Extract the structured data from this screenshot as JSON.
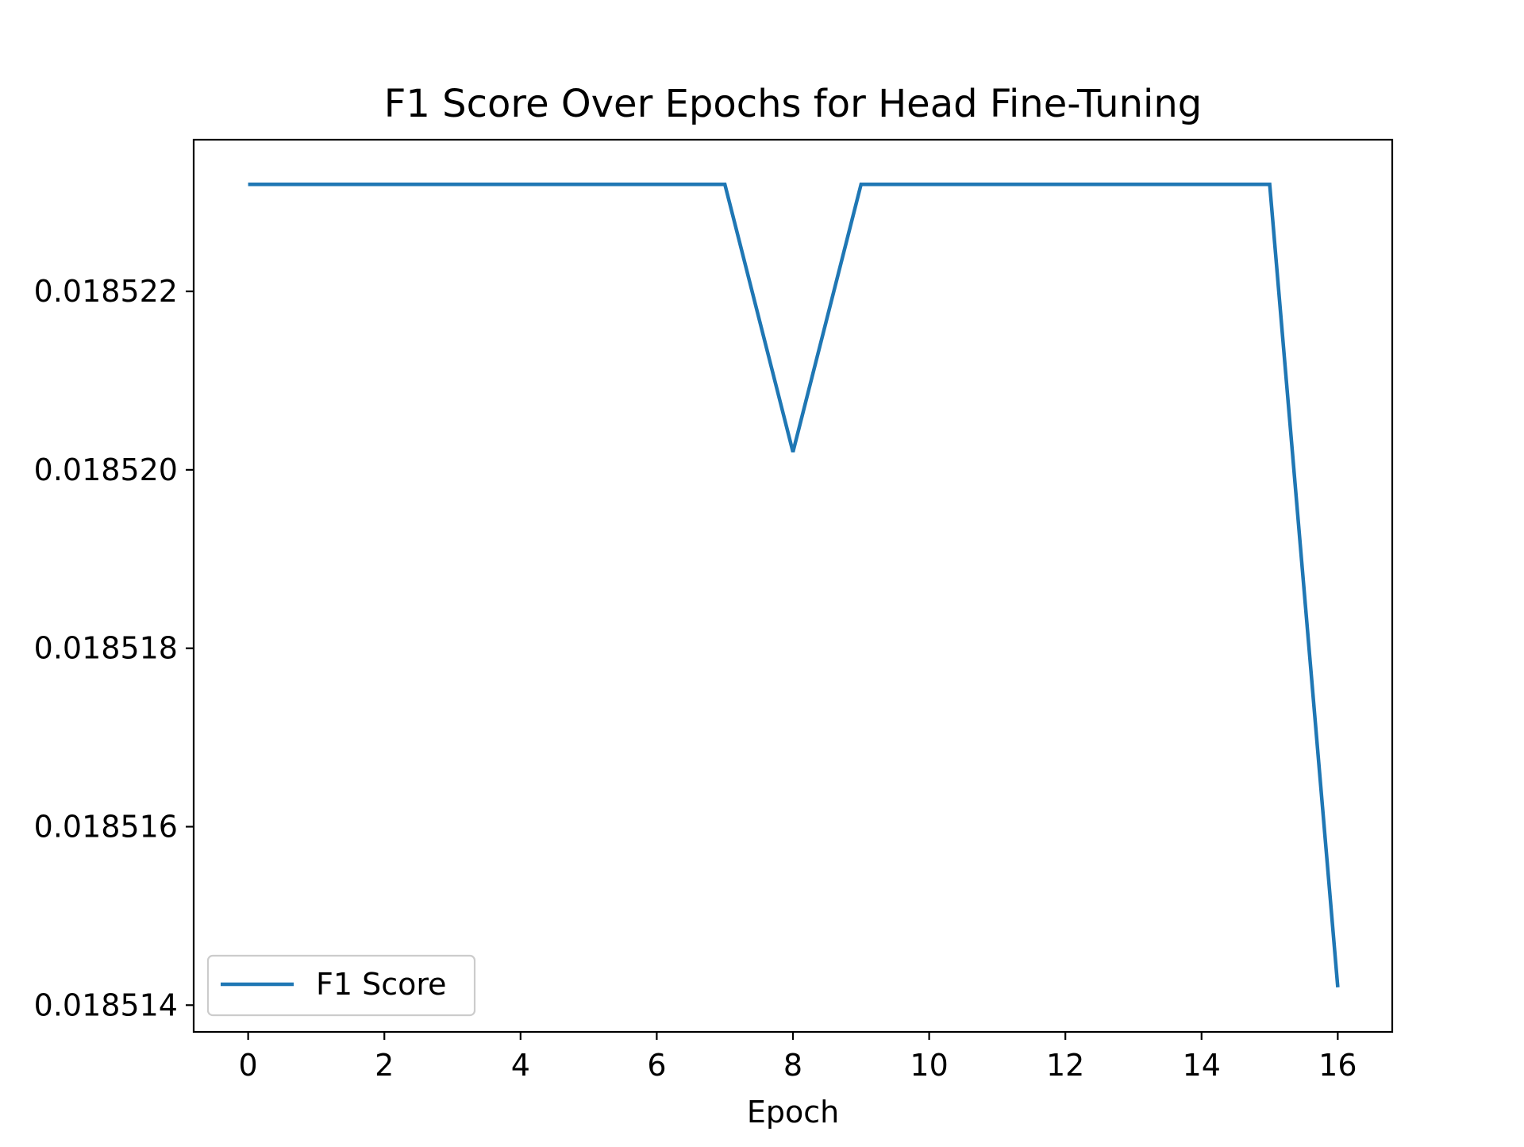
{
  "chart_data": {
    "type": "line",
    "title": "F1 Score Over Epochs for Head Fine-Tuning",
    "xlabel": "Epoch",
    "ylabel": "",
    "x": [
      0,
      1,
      2,
      3,
      4,
      5,
      6,
      7,
      8,
      9,
      10,
      11,
      12,
      13,
      14,
      15,
      16
    ],
    "series": [
      {
        "name": "F1 Score",
        "color": "#1f77b4",
        "values": [
          0.0185232,
          0.0185232,
          0.0185232,
          0.0185232,
          0.0185232,
          0.0185232,
          0.0185232,
          0.0185232,
          0.0185202,
          0.0185232,
          0.0185232,
          0.0185232,
          0.0185232,
          0.0185232,
          0.0185232,
          0.0185232,
          0.0185142
        ]
      }
    ],
    "xticks": [
      0,
      2,
      4,
      6,
      8,
      10,
      12,
      14,
      16
    ],
    "xtick_labels": [
      "0",
      "2",
      "4",
      "6",
      "8",
      "10",
      "12",
      "14",
      "16"
    ],
    "yticks": [
      0.018514,
      0.018516,
      0.018518,
      0.01852,
      0.018522
    ],
    "ytick_labels": [
      "0.018514",
      "0.018516",
      "0.018518",
      "0.018520",
      "0.018522"
    ],
    "xlim": [
      -0.8,
      16.8
    ],
    "ylim": [
      0.0185137,
      0.0185237
    ],
    "grid": false,
    "legend_position": "lower-left"
  }
}
